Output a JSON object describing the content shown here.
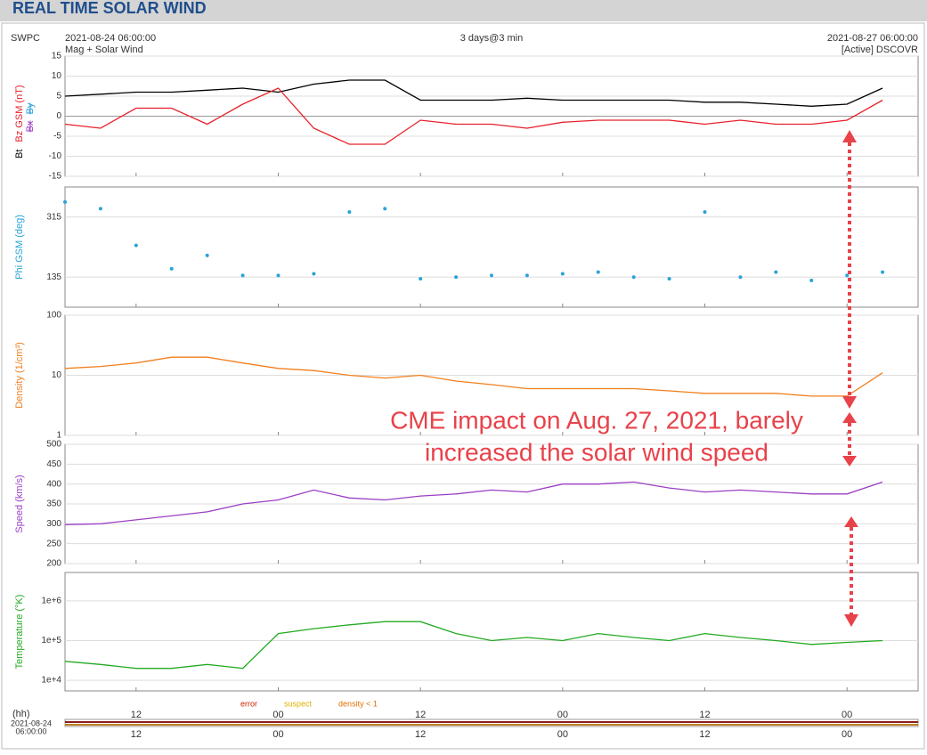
{
  "page": {
    "header": "REAL TIME SOLAR WIND",
    "org": "SWPC",
    "start": "2021-08-24 06:00:00",
    "subtitle": "Mag + Solar Wind",
    "span": "3 days@3 min",
    "end": "2021-08-27 06:00:00",
    "source": "[Active] DSCOVR",
    "hh_label": "(hh)",
    "bottom_start": [
      "2021-08-24",
      "06:00:00"
    ],
    "flags": [
      {
        "label": "error",
        "color": "#cc2200"
      },
      {
        "label": "suspect",
        "color": "#e0b000"
      },
      {
        "label": "density < 1",
        "color": "#e07000"
      }
    ],
    "annotation": [
      "CME impact on Aug. 27, 2021, barely",
      "increased the solar wind speed"
    ]
  },
  "chart_data": [
    {
      "type": "line",
      "inactive_series": [
        "Bx",
        "By"
      ],
      "xlim": [
        0,
        72
      ],
      "xticks": [
        {
          "value": 6,
          "label": "12"
        },
        {
          "value": 18,
          "label": "00"
        },
        {
          "value": 30,
          "label": "12"
        },
        {
          "value": 42,
          "label": "00"
        },
        {
          "value": 54,
          "label": "12"
        },
        {
          "value": 66,
          "label": "00"
        }
      ],
      "x": [
        0,
        3,
        6,
        9,
        12,
        15,
        18,
        21,
        24,
        27,
        30,
        33,
        36,
        39,
        42,
        45,
        48,
        51,
        54,
        57,
        60,
        63,
        66,
        69
      ],
      "ylim": [
        -15,
        15
      ],
      "yticks": [
        -15,
        -10,
        -5,
        0,
        5,
        10,
        15
      ],
      "log": false,
      "series": [
        {
          "name": "Bt",
          "color": "#000000",
          "values": [
            5,
            5.5,
            6,
            6,
            6.5,
            7,
            6,
            8,
            9,
            9,
            4,
            4,
            4,
            4.5,
            4,
            4,
            4,
            4,
            3.5,
            3.5,
            3,
            2.5,
            3,
            7
          ]
        },
        {
          "name": "Bz GSM (nT)",
          "color": "#e8202a",
          "values": [
            -2,
            -3,
            2,
            2,
            -2,
            3,
            7,
            -3,
            -7,
            -7,
            -1,
            -2,
            -2,
            -3,
            -1.5,
            -1,
            -1,
            -1,
            -2,
            -1,
            -2,
            -2,
            -1,
            4
          ]
        }
      ]
    },
    {
      "type": "scatter",
      "y_label": "Phi GSM (deg)",
      "xlim": [
        0,
        72
      ],
      "xticks": [
        {
          "value": 6,
          "label": "12"
        },
        {
          "value": 18,
          "label": "00"
        },
        {
          "value": 30,
          "label": "12"
        },
        {
          "value": 42,
          "label": "00"
        },
        {
          "value": 54,
          "label": "12"
        },
        {
          "value": 66,
          "label": "00"
        }
      ],
      "x": [
        0,
        3,
        6,
        9,
        12,
        15,
        18,
        21,
        24,
        27,
        30,
        33,
        36,
        39,
        42,
        45,
        48,
        51,
        54,
        57,
        60,
        63,
        66,
        69
      ],
      "ylim": [
        45,
        405
      ],
      "yticks": [
        135,
        315
      ],
      "log": false,
      "series": [
        {
          "color": "#29a3d8",
          "values": [
            360,
            340,
            230,
            160,
            200,
            140,
            140,
            145,
            330,
            340,
            130,
            135,
            140,
            140,
            145,
            150,
            135,
            130,
            330,
            135,
            150,
            125,
            140,
            150
          ]
        }
      ]
    },
    {
      "type": "line",
      "y_label": "Density (1/cm³)",
      "xlim": [
        0,
        72
      ],
      "xticks": [
        {
          "value": 6,
          "label": "12"
        },
        {
          "value": 18,
          "label": "00"
        },
        {
          "value": 30,
          "label": "12"
        },
        {
          "value": 42,
          "label": "00"
        },
        {
          "value": 54,
          "label": "12"
        },
        {
          "value": 66,
          "label": "00"
        }
      ],
      "x": [
        0,
        3,
        6,
        9,
        12,
        15,
        18,
        21,
        24,
        27,
        30,
        33,
        36,
        39,
        42,
        45,
        48,
        51,
        54,
        57,
        60,
        63,
        66,
        69
      ],
      "ylim": [
        1,
        100
      ],
      "yticks": [
        1,
        10,
        100
      ],
      "log": true,
      "series": [
        {
          "color": "#f07f1e",
          "values": [
            13,
            14,
            16,
            20,
            20,
            16,
            13,
            12,
            10,
            9,
            10,
            8,
            7,
            6,
            6,
            6,
            6,
            5.5,
            5,
            5,
            5,
            4.5,
            4.5,
            11
          ]
        }
      ]
    },
    {
      "type": "line",
      "y_label": "Speed (km/s)",
      "xlim": [
        0,
        72
      ],
      "xticks": [
        {
          "value": 6,
          "label": "12"
        },
        {
          "value": 18,
          "label": "00"
        },
        {
          "value": 30,
          "label": "12"
        },
        {
          "value": 42,
          "label": "00"
        },
        {
          "value": 54,
          "label": "12"
        },
        {
          "value": 66,
          "label": "00"
        }
      ],
      "x": [
        0,
        3,
        6,
        9,
        12,
        15,
        18,
        21,
        24,
        27,
        30,
        33,
        36,
        39,
        42,
        45,
        48,
        51,
        54,
        57,
        60,
        63,
        66,
        69
      ],
      "ylim": [
        200,
        500
      ],
      "yticks": [
        200,
        250,
        300,
        350,
        400,
        450,
        500
      ],
      "log": false,
      "series": [
        {
          "color": "#9b3fc4",
          "values": [
            298,
            300,
            310,
            320,
            330,
            350,
            360,
            385,
            365,
            360,
            370,
            375,
            385,
            380,
            400,
            400,
            405,
            390,
            380,
            385,
            380,
            375,
            375,
            405
          ]
        }
      ]
    },
    {
      "type": "line",
      "y_label": "Temperature (°K)",
      "xlim": [
        0,
        72
      ],
      "xticks": [
        {
          "value": 6,
          "label": "12"
        },
        {
          "value": 18,
          "label": "00"
        },
        {
          "value": 30,
          "label": "12"
        },
        {
          "value": 42,
          "label": "00"
        },
        {
          "value": 54,
          "label": "12"
        },
        {
          "value": 66,
          "label": "00"
        }
      ],
      "x": [
        0,
        3,
        6,
        9,
        12,
        15,
        18,
        21,
        24,
        27,
        30,
        33,
        36,
        39,
        42,
        45,
        48,
        51,
        54,
        57,
        60,
        63,
        66,
        69
      ],
      "ylim": [
        5400,
        5200000
      ],
      "yticks": [
        {
          "value": 10000,
          "label": "1e+4"
        },
        {
          "value": 100000,
          "label": "1e+5"
        },
        {
          "value": 1000000,
          "label": "1e+6"
        }
      ],
      "log": true,
      "series": [
        {
          "color": "#22aa22",
          "values": [
            30000,
            25000,
            20000,
            20000,
            25000,
            20000,
            150000,
            200000,
            250000,
            300000,
            300000,
            150000,
            100000,
            120000,
            100000,
            150000,
            120000,
            100000,
            150000,
            120000,
            100000,
            80000,
            90000,
            100000
          ]
        }
      ]
    }
  ]
}
